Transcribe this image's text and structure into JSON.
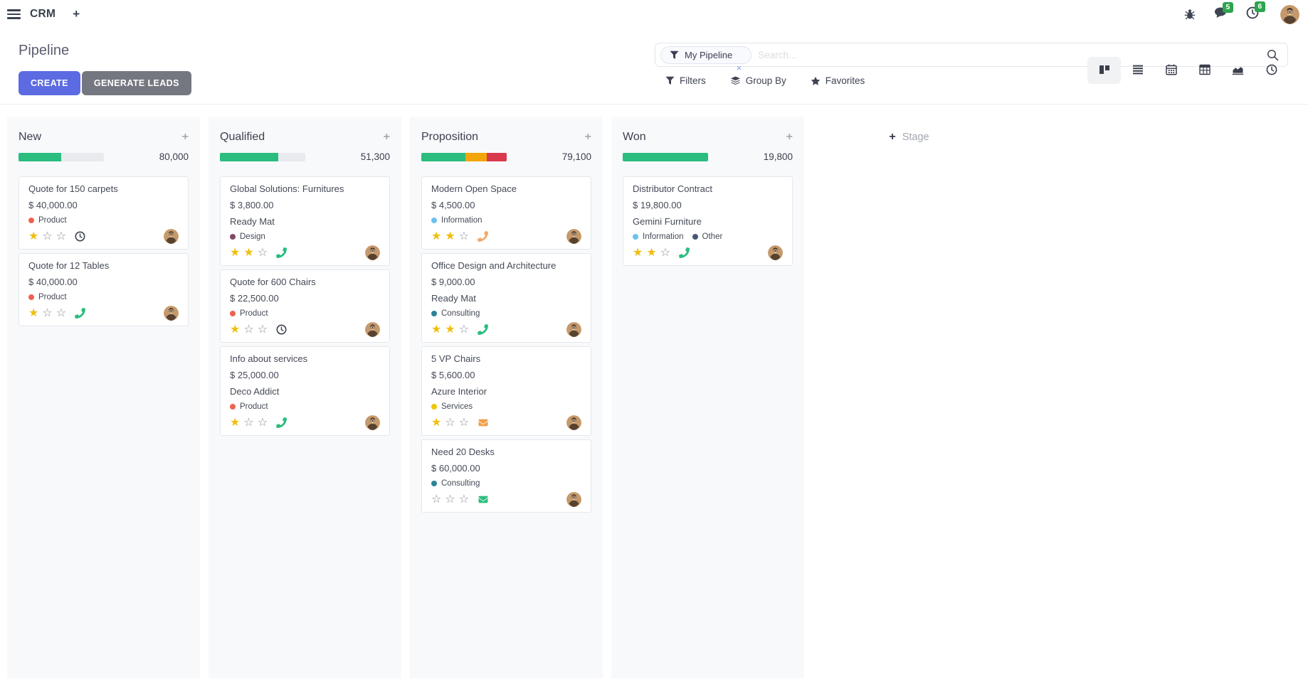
{
  "colors": {
    "accent": "#5C6BE1",
    "secondary_button": "#74777F",
    "success": "#2ABD7E",
    "warning": "#F2A60B",
    "danger": "#D9394C",
    "badge_green": "#2DA44E",
    "star_gold": "#EFBE0F",
    "tag_red": "#F06050",
    "tag_purple": "#814968",
    "tag_lightblue": "#6CC1ED",
    "tag_teal": "#2C8397",
    "tag_yellow": "#F0C500",
    "tag_navy": "#475577"
  },
  "navbar": {
    "app_name": "CRM",
    "add_app_label": "+",
    "icons": [
      {
        "name": "bug-icon"
      },
      {
        "name": "chat-icon",
        "badge": "5"
      },
      {
        "name": "clock-icon",
        "badge": "6"
      },
      {
        "name": "avatar"
      }
    ]
  },
  "control_panel": {
    "title": "Pipeline",
    "create_label": "CREATE",
    "generate_leads_label": "GENERATE LEADS",
    "search": {
      "facet_label": "My Pipeline",
      "facet_remove": "×",
      "placeholder": "Search..."
    },
    "menus": [
      {
        "label": "Filters",
        "icon": "filter-icon"
      },
      {
        "label": "Group By",
        "icon": "layers-icon"
      },
      {
        "label": "Favorites",
        "icon": "star-icon"
      }
    ],
    "view_switcher": [
      {
        "name": "kanban",
        "active": true
      },
      {
        "name": "list",
        "active": false
      },
      {
        "name": "calendar",
        "active": false
      },
      {
        "name": "pivot",
        "active": false
      },
      {
        "name": "graph",
        "active": false
      },
      {
        "name": "activity",
        "active": false
      }
    ]
  },
  "board": {
    "column_add_label": "+",
    "add_stage": {
      "plus": "+",
      "label": "Stage"
    },
    "columns": [
      {
        "title": "New",
        "total": "80,000",
        "progress": [
          {
            "color": "success",
            "pct": 50
          }
        ],
        "cards": [
          {
            "title": "Quote for 150 carpets",
            "amount": "$ 40,000.00",
            "tags": [
              {
                "label": "Product",
                "color": "tag_red"
              }
            ],
            "stars": 1,
            "activity": {
              "type": "clock",
              "color": "#3B4252"
            }
          },
          {
            "title": "Quote for 12 Tables",
            "amount": "$ 40,000.00",
            "tags": [
              {
                "label": "Product",
                "color": "tag_red"
              }
            ],
            "stars": 1,
            "activity": {
              "type": "phone",
              "color": "#2ABD7E"
            }
          }
        ]
      },
      {
        "title": "Qualified",
        "total": "51,300",
        "progress": [
          {
            "color": "success",
            "pct": 68
          }
        ],
        "cards": [
          {
            "title": "Global Solutions: Furnitures",
            "amount": "$ 3,800.00",
            "partner": "Ready Mat",
            "tags": [
              {
                "label": "Design",
                "color": "tag_purple"
              }
            ],
            "stars": 2,
            "activity": {
              "type": "phone",
              "color": "#2ABD7E"
            }
          },
          {
            "title": "Quote for 600 Chairs",
            "amount": "$ 22,500.00",
            "tags": [
              {
                "label": "Product",
                "color": "tag_red"
              }
            ],
            "stars": 1,
            "activity": {
              "type": "clock",
              "color": "#3B4252"
            }
          },
          {
            "title": "Info about services",
            "amount": "$ 25,000.00",
            "partner": "Deco Addict",
            "tags": [
              {
                "label": "Product",
                "color": "tag_red"
              }
            ],
            "stars": 1,
            "activity": {
              "type": "phone",
              "color": "#2ABD7E"
            }
          }
        ]
      },
      {
        "title": "Proposition",
        "total": "79,100",
        "progress": [
          {
            "color": "success",
            "pct": 52
          },
          {
            "color": "warning",
            "pct": 25
          },
          {
            "color": "danger",
            "pct": 23
          }
        ],
        "cards": [
          {
            "title": "Modern Open Space",
            "amount": "$ 4,500.00",
            "tags": [
              {
                "label": "Information",
                "color": "tag_lightblue"
              }
            ],
            "stars": 2,
            "activity": {
              "type": "phone",
              "color": "#F2A96B"
            }
          },
          {
            "title": "Office Design and Architecture",
            "amount": "$ 9,000.00",
            "partner": "Ready Mat",
            "tags": [
              {
                "label": "Consulting",
                "color": "tag_teal"
              }
            ],
            "stars": 2,
            "activity": {
              "type": "phone",
              "color": "#2ABD7E"
            }
          },
          {
            "title": "5 VP Chairs",
            "amount": "$ 5,600.00",
            "partner": "Azure Interior",
            "tags": [
              {
                "label": "Services",
                "color": "tag_yellow"
              }
            ],
            "stars": 1,
            "activity": {
              "type": "mail",
              "color": "#F0A04B"
            }
          },
          {
            "title": "Need 20 Desks",
            "amount": "$ 60,000.00",
            "tags": [
              {
                "label": "Consulting",
                "color": "tag_teal"
              }
            ],
            "stars": 0,
            "activity": {
              "type": "mail",
              "color": "#2DBE7E"
            }
          }
        ]
      },
      {
        "title": "Won",
        "total": "19,800",
        "progress": [
          {
            "color": "success",
            "pct": 100
          }
        ],
        "cards": [
          {
            "title": "Distributor Contract",
            "amount": "$ 19,800.00",
            "partner": "Gemini Furniture",
            "tags": [
              {
                "label": "Information",
                "color": "tag_lightblue"
              },
              {
                "label": "Other",
                "color": "tag_navy"
              }
            ],
            "stars": 2,
            "activity": {
              "type": "phone",
              "color": "#2ABD7E"
            }
          }
        ]
      }
    ]
  }
}
